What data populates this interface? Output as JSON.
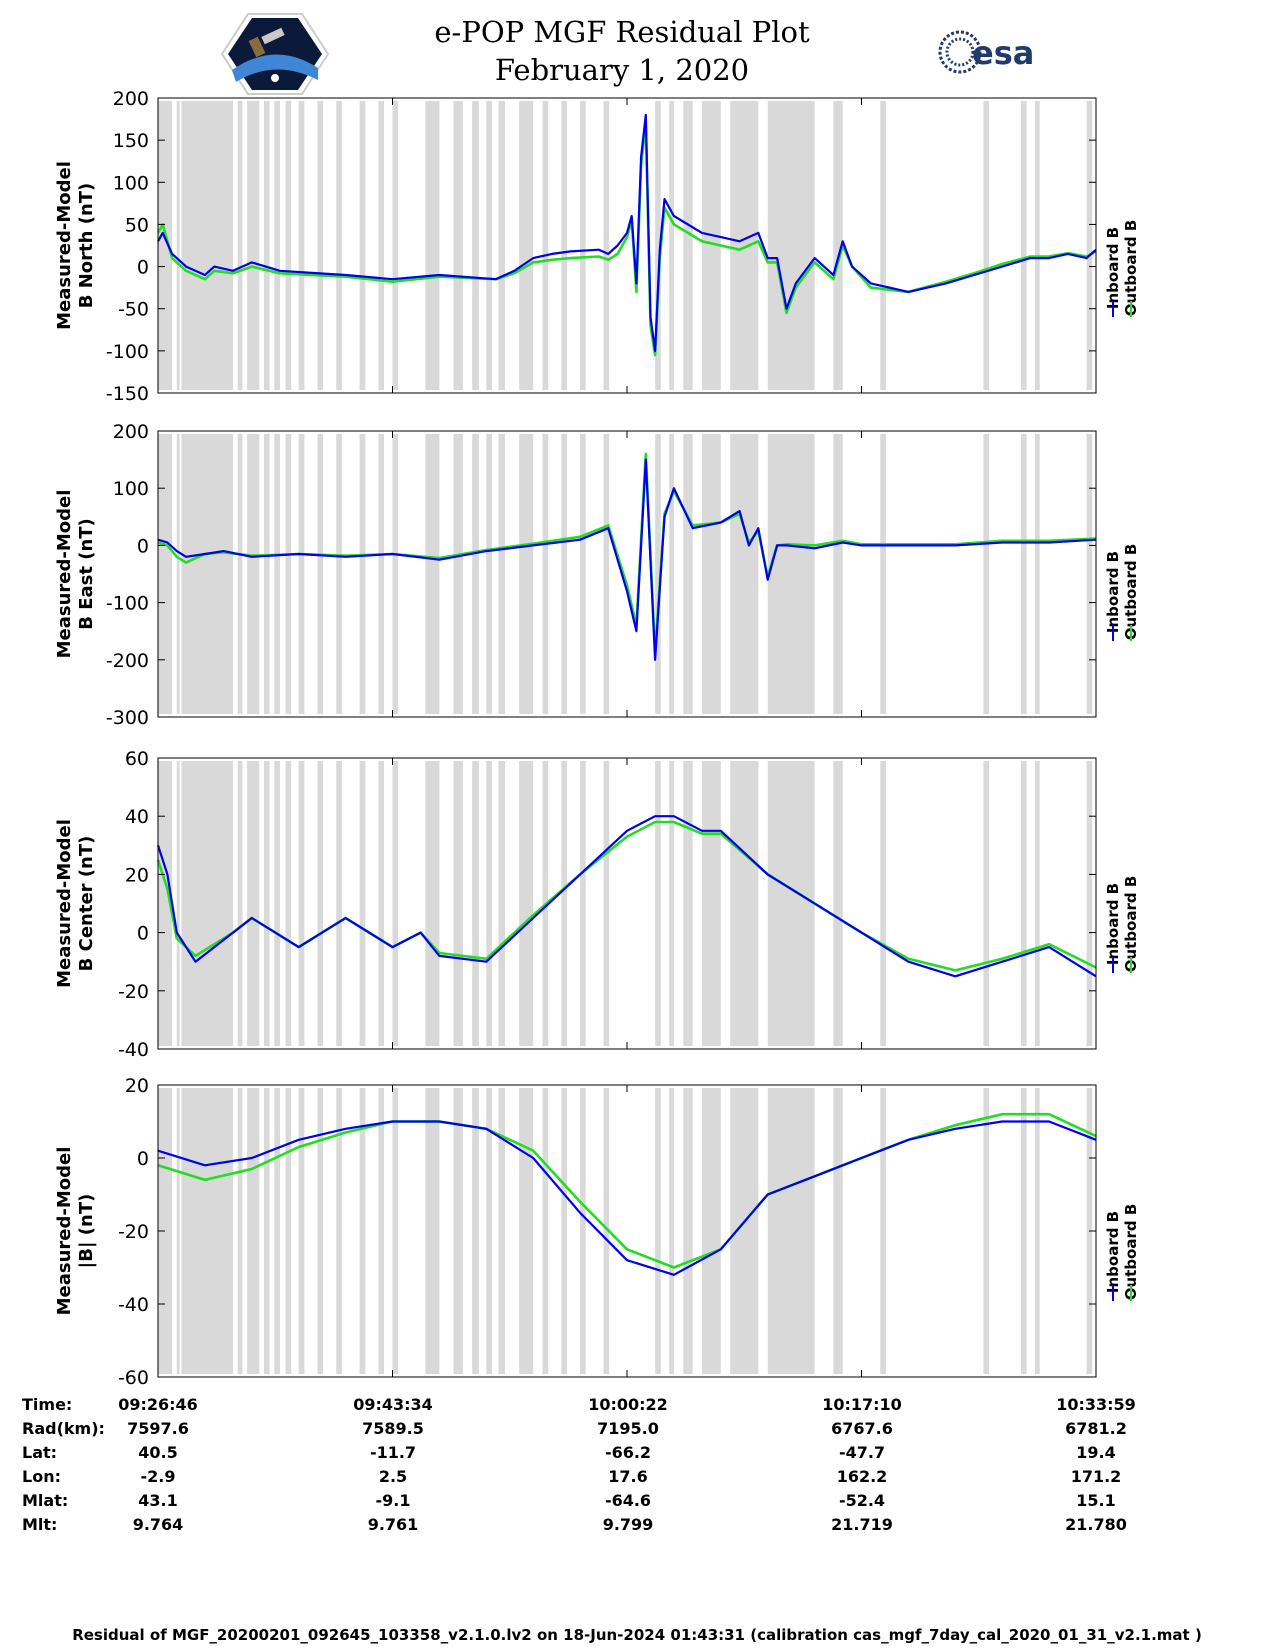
{
  "title": "e-POP MGF Residual Plot",
  "subtitle": "February 1, 2020",
  "logos": {
    "left": "cassiope-mission-logo",
    "right": "esa-logo",
    "right_text": "esa"
  },
  "colors": {
    "inboard": "#0000ee",
    "outboard": "#22dd22",
    "flag": "#d9d9d9",
    "axis": "#000000"
  },
  "chart_data": [
    {
      "type": "line",
      "ylabel_lines": [
        "Measured-Model",
        "B North (nT)"
      ],
      "ylim": [
        -150,
        200
      ],
      "yticks": [
        "200",
        "150",
        "100",
        "50",
        "0",
        "-50",
        "-100",
        "-150"
      ],
      "legend": [
        "Inboard B",
        "Outboard B"
      ],
      "series": [
        {
          "name": "Inboard B",
          "color": "#0000ee",
          "x": [
            0,
            0.5,
            1.5,
            3,
            5,
            6,
            8,
            10,
            13,
            20,
            25,
            30,
            36,
            38,
            40,
            42,
            44,
            47,
            48,
            49,
            50,
            50.5,
            51,
            51.5,
            52,
            52.5,
            53,
            53.5,
            54,
            55,
            58,
            60,
            62,
            64,
            65,
            66,
            67,
            68,
            70,
            72,
            73,
            74,
            76,
            80,
            84,
            87,
            90,
            93,
            95,
            97,
            99,
            100
          ],
          "y": [
            30,
            40,
            15,
            0,
            -10,
            0,
            -5,
            5,
            -5,
            -10,
            -15,
            -10,
            -15,
            -5,
            10,
            15,
            18,
            20,
            15,
            25,
            40,
            60,
            -20,
            130,
            180,
            -60,
            -100,
            20,
            80,
            60,
            40,
            35,
            30,
            40,
            10,
            10,
            -50,
            -20,
            10,
            -10,
            30,
            0,
            -20,
            -30,
            -20,
            -10,
            0,
            10,
            10,
            15,
            10,
            20
          ]
        },
        {
          "name": "Outboard B",
          "color": "#22dd22",
          "x": [
            0,
            0.5,
            1.5,
            3,
            5,
            6,
            8,
            10,
            13,
            20,
            25,
            30,
            36,
            38,
            40,
            42,
            44,
            47,
            48,
            49,
            50,
            50.5,
            51,
            51.5,
            52,
            52.5,
            53,
            53.5,
            54,
            55,
            58,
            60,
            62,
            64,
            65,
            66,
            67,
            68,
            70,
            72,
            73,
            74,
            76,
            80,
            84,
            87,
            90,
            93,
            95,
            97,
            99,
            100
          ],
          "y": [
            40,
            50,
            10,
            -5,
            -15,
            -5,
            -8,
            0,
            -8,
            -12,
            -18,
            -12,
            -15,
            -8,
            5,
            8,
            10,
            12,
            8,
            15,
            35,
            55,
            -30,
            120,
            170,
            -70,
            -105,
            10,
            70,
            50,
            30,
            25,
            20,
            30,
            5,
            5,
            -55,
            -25,
            5,
            -15,
            25,
            0,
            -25,
            -30,
            -18,
            -8,
            3,
            12,
            12,
            16,
            12,
            18
          ]
        }
      ]
    },
    {
      "type": "line",
      "ylabel_lines": [
        "Measured-Model",
        "B East (nT)"
      ],
      "ylim": [
        -300,
        200
      ],
      "yticks": [
        "200",
        "100",
        "0",
        "-100",
        "-200",
        "-300"
      ],
      "legend": [
        "Inboard B",
        "Outboard B"
      ],
      "series": [
        {
          "name": "Inboard B",
          "color": "#0000ee",
          "x": [
            0,
            1,
            2,
            3,
            5,
            7,
            10,
            15,
            20,
            25,
            30,
            35,
            40,
            45,
            48,
            50,
            51,
            52,
            53,
            54,
            55,
            57,
            60,
            62,
            63,
            64,
            65,
            66,
            67,
            70,
            73,
            75,
            80,
            85,
            90,
            95,
            100
          ],
          "y": [
            10,
            5,
            -10,
            -20,
            -15,
            -10,
            -20,
            -15,
            -20,
            -15,
            -25,
            -10,
            0,
            10,
            30,
            -80,
            -150,
            150,
            -200,
            50,
            100,
            30,
            40,
            60,
            0,
            30,
            -60,
            0,
            0,
            -5,
            5,
            0,
            0,
            0,
            5,
            5,
            10
          ]
        },
        {
          "name": "Outboard B",
          "color": "#22dd22",
          "x": [
            0,
            1,
            2,
            3,
            5,
            7,
            10,
            15,
            20,
            25,
            30,
            35,
            40,
            45,
            48,
            50,
            51,
            52,
            53,
            54,
            55,
            57,
            60,
            62,
            63,
            64,
            65,
            66,
            67,
            70,
            73,
            75,
            80,
            85,
            90,
            95,
            100
          ],
          "y": [
            5,
            0,
            -20,
            -30,
            -15,
            -12,
            -18,
            -15,
            -18,
            -15,
            -22,
            -8,
            3,
            15,
            35,
            -70,
            -140,
            160,
            -190,
            55,
            95,
            35,
            40,
            55,
            5,
            25,
            -55,
            0,
            2,
            0,
            8,
            2,
            2,
            2,
            8,
            8,
            12
          ]
        }
      ]
    },
    {
      "type": "line",
      "ylabel_lines": [
        "Measured-Model",
        "B Center (nT)"
      ],
      "ylim": [
        -40,
        60
      ],
      "yticks": [
        "60",
        "40",
        "20",
        "0",
        "-20",
        "-40"
      ],
      "legend": [
        "Inboard B",
        "Outboard B"
      ],
      "series": [
        {
          "name": "Inboard B",
          "color": "#0000ee",
          "x": [
            0,
            1,
            2,
            4,
            6,
            8,
            10,
            15,
            20,
            25,
            28,
            30,
            35,
            40,
            45,
            50,
            53,
            55,
            58,
            60,
            65,
            70,
            75,
            80,
            85,
            90,
            95,
            100
          ],
          "y": [
            30,
            20,
            0,
            -10,
            -5,
            0,
            5,
            -5,
            5,
            -5,
            0,
            -8,
            -10,
            5,
            20,
            35,
            40,
            40,
            35,
            35,
            20,
            10,
            0,
            -10,
            -15,
            -10,
            -5,
            -15
          ]
        },
        {
          "name": "Outboard B",
          "color": "#22dd22",
          "x": [
            0,
            1,
            2,
            4,
            6,
            8,
            10,
            15,
            20,
            25,
            28,
            30,
            35,
            40,
            45,
            50,
            53,
            55,
            58,
            60,
            65,
            70,
            75,
            80,
            85,
            90,
            95,
            100
          ],
          "y": [
            25,
            15,
            -2,
            -8,
            -4,
            0,
            5,
            -5,
            5,
            -5,
            0,
            -7,
            -9,
            6,
            20,
            33,
            38,
            38,
            34,
            34,
            20,
            10,
            0,
            -9,
            -13,
            -9,
            -4,
            -12
          ]
        }
      ]
    },
    {
      "type": "line",
      "ylabel_lines": [
        "Measured-Model",
        "|B| (nT)"
      ],
      "ylim": [
        -60,
        20
      ],
      "yticks": [
        "20",
        "0",
        "-20",
        "-40",
        "-60"
      ],
      "legend": [
        "Inboard B",
        "Outboard B"
      ],
      "series": [
        {
          "name": "Inboard B",
          "color": "#0000ee",
          "x": [
            0,
            5,
            10,
            15,
            20,
            25,
            30,
            35,
            40,
            45,
            50,
            55,
            60,
            65,
            70,
            75,
            80,
            85,
            90,
            95,
            100
          ],
          "y": [
            2,
            -2,
            0,
            5,
            8,
            10,
            10,
            8,
            0,
            -15,
            -28,
            -32,
            -25,
            -10,
            -5,
            0,
            5,
            8,
            10,
            10,
            5
          ]
        },
        {
          "name": "Outboard B",
          "color": "#22dd22",
          "x": [
            0,
            5,
            10,
            15,
            20,
            25,
            30,
            35,
            40,
            45,
            50,
            55,
            60,
            65,
            70,
            75,
            80,
            85,
            90,
            95,
            100
          ],
          "y": [
            -2,
            -6,
            -3,
            3,
            7,
            10,
            10,
            8,
            2,
            -12,
            -25,
            -30,
            -25,
            -10,
            -5,
            0,
            5,
            9,
            12,
            12,
            6
          ]
        }
      ]
    }
  ],
  "table": {
    "rows": [
      {
        "label": "Time:",
        "values": [
          "09:26:46",
          "09:43:34",
          "10:00:22",
          "10:17:10",
          "10:33:59"
        ]
      },
      {
        "label": "Rad(km):",
        "values": [
          "7597.6",
          "7589.5",
          "7195.0",
          "6767.6",
          "6781.2"
        ]
      },
      {
        "label": "Lat:",
        "values": [
          "40.5",
          "-11.7",
          "-66.2",
          "-47.7",
          "19.4"
        ]
      },
      {
        "label": "Lon:",
        "values": [
          "-2.9",
          "2.5",
          "17.6",
          "162.2",
          "171.2"
        ]
      },
      {
        "label": "Mlat:",
        "values": [
          "43.1",
          "-9.1",
          "-64.6",
          "-52.4",
          "15.1"
        ]
      },
      {
        "label": "Mlt:",
        "values": [
          "9.764",
          "9.761",
          "9.799",
          "21.719",
          "21.780"
        ]
      }
    ]
  },
  "footer": "Residual of MGF_20200201_092645_103358_v2.1.0.lv2 on 18-Jun-2024 01:43:31 (calibration cas_mgf_7day_cal_2020_01_31_v2.1.mat )"
}
